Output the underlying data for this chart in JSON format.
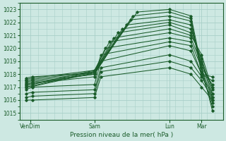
{
  "xlabel": "Pression niveau de la mer( hPa )",
  "ylim": [
    1014.5,
    1023.5
  ],
  "yticks": [
    1015,
    1016,
    1017,
    1018,
    1019,
    1020,
    1021,
    1022,
    1023
  ],
  "xtick_labels": [
    "VenDim",
    "Sam",
    "Lun",
    "Mar"
  ],
  "xtick_positions": [
    0.5,
    3.5,
    7.0,
    8.5
  ],
  "xlim": [
    0,
    9.5
  ],
  "bg_color": "#cde8e2",
  "grid_color": "#a8cfc8",
  "line_color": "#1a5c2a",
  "lines": [
    {
      "x": [
        0.3,
        0.6,
        3.5,
        5.5,
        7.0,
        8.0,
        8.5,
        9.0
      ],
      "y": [
        1017.0,
        1017.1,
        1018.2,
        1022.8,
        1023.0,
        1022.5,
        1018.5,
        1015.2
      ]
    },
    {
      "x": [
        0.3,
        0.6,
        3.5,
        5.3,
        7.0,
        8.0,
        8.5,
        9.0
      ],
      "y": [
        1017.1,
        1017.2,
        1018.3,
        1022.5,
        1022.8,
        1022.3,
        1018.2,
        1015.5
      ]
    },
    {
      "x": [
        0.3,
        0.6,
        3.5,
        5.2,
        7.0,
        8.0,
        8.5,
        9.0
      ],
      "y": [
        1017.0,
        1017.05,
        1018.1,
        1022.2,
        1022.5,
        1022.1,
        1018.0,
        1015.8
      ]
    },
    {
      "x": [
        0.3,
        0.6,
        3.5,
        5.0,
        7.0,
        8.0,
        8.5,
        9.0
      ],
      "y": [
        1017.2,
        1017.3,
        1018.0,
        1021.8,
        1022.2,
        1021.8,
        1018.5,
        1016.0
      ]
    },
    {
      "x": [
        0.3,
        0.6,
        3.5,
        4.8,
        7.0,
        8.0,
        8.5,
        9.0
      ],
      "y": [
        1017.3,
        1017.4,
        1018.0,
        1021.5,
        1022.0,
        1021.5,
        1019.0,
        1016.2
      ]
    },
    {
      "x": [
        0.3,
        0.6,
        3.5,
        4.6,
        7.0,
        8.0,
        8.5,
        9.0
      ],
      "y": [
        1017.4,
        1017.5,
        1018.1,
        1021.2,
        1021.8,
        1021.2,
        1019.2,
        1016.5
      ]
    },
    {
      "x": [
        0.3,
        0.6,
        3.5,
        4.4,
        7.0,
        8.0,
        8.5,
        9.0
      ],
      "y": [
        1017.5,
        1017.6,
        1018.2,
        1020.8,
        1021.5,
        1021.0,
        1019.5,
        1016.8
      ]
    },
    {
      "x": [
        0.3,
        0.6,
        3.5,
        4.2,
        7.0,
        8.0,
        8.5,
        9.0
      ],
      "y": [
        1017.6,
        1017.7,
        1018.3,
        1020.5,
        1021.2,
        1020.8,
        1018.8,
        1017.0
      ]
    },
    {
      "x": [
        0.3,
        0.6,
        3.5,
        4.0,
        7.0,
        8.0,
        8.5,
        9.0
      ],
      "y": [
        1017.7,
        1017.8,
        1018.1,
        1020.0,
        1020.8,
        1020.5,
        1018.5,
        1017.2
      ]
    },
    {
      "x": [
        0.3,
        0.6,
        3.5,
        3.8,
        7.0,
        8.0,
        8.5,
        9.0
      ],
      "y": [
        1017.2,
        1017.3,
        1017.8,
        1019.5,
        1020.5,
        1020.2,
        1018.0,
        1017.5
      ]
    },
    {
      "x": [
        0.3,
        0.6,
        3.5,
        3.8,
        7.0,
        8.0,
        8.5,
        9.0
      ],
      "y": [
        1016.8,
        1017.0,
        1017.2,
        1019.0,
        1020.2,
        1019.8,
        1018.0,
        1017.8
      ]
    },
    {
      "x": [
        0.3,
        0.6,
        3.5,
        3.8,
        7.0,
        8.0,
        8.5,
        9.0
      ],
      "y": [
        1016.5,
        1016.6,
        1016.8,
        1018.5,
        1019.5,
        1019.0,
        1017.8,
        1016.5
      ]
    },
    {
      "x": [
        0.3,
        0.6,
        3.5,
        3.8,
        7.0,
        8.0,
        8.5,
        9.0
      ],
      "y": [
        1016.2,
        1016.3,
        1016.5,
        1018.2,
        1019.0,
        1018.5,
        1017.5,
        1016.2
      ]
    },
    {
      "x": [
        0.3,
        0.6,
        3.5,
        3.8,
        7.0,
        8.0,
        8.5,
        9.0
      ],
      "y": [
        1016.0,
        1016.0,
        1016.2,
        1017.8,
        1018.5,
        1018.0,
        1017.0,
        1016.0
      ]
    }
  ]
}
